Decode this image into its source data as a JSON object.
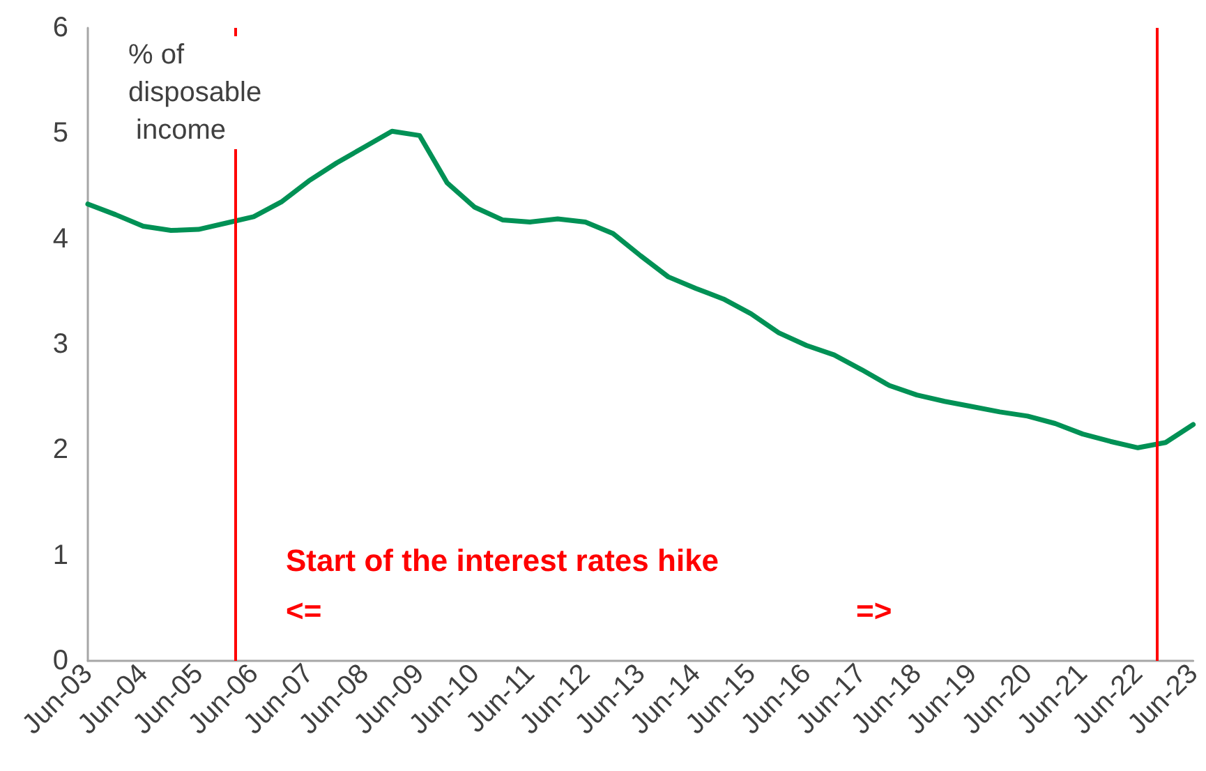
{
  "chart_data": {
    "type": "line",
    "x": [
      "2003-06",
      "2003-12",
      "2004-06",
      "2004-12",
      "2005-06",
      "2005-12",
      "2006-06",
      "2006-12",
      "2007-06",
      "2007-12",
      "2008-06",
      "2008-12",
      "2009-06",
      "2009-12",
      "2010-06",
      "2010-12",
      "2011-06",
      "2011-12",
      "2012-06",
      "2012-12",
      "2013-06",
      "2013-12",
      "2014-06",
      "2014-12",
      "2015-06",
      "2015-12",
      "2016-06",
      "2016-12",
      "2017-06",
      "2017-12",
      "2018-06",
      "2018-12",
      "2019-06",
      "2019-12",
      "2020-06",
      "2020-12",
      "2021-06",
      "2021-12",
      "2022-06",
      "2022-12",
      "2023-06"
    ],
    "series": [
      {
        "color": "#009155",
        "values": [
          4.33,
          4.23,
          4.12,
          4.08,
          4.09,
          4.15,
          4.21,
          4.35,
          4.55,
          4.72,
          4.87,
          5.02,
          4.98,
          4.53,
          4.3,
          4.18,
          4.16,
          4.19,
          4.16,
          4.05,
          3.84,
          3.64,
          3.53,
          3.43,
          3.29,
          3.11,
          2.99,
          2.9,
          2.76,
          2.61,
          2.52,
          2.46,
          2.41,
          2.36,
          2.32,
          2.25,
          2.15,
          2.08,
          2.02,
          2.07,
          2.24
        ]
      }
    ],
    "xlim": [
      "2003-06",
      "2023-06"
    ],
    "xticks": [
      {
        "value": "2003-06",
        "label": "Jun-03"
      },
      {
        "value": "2004-06",
        "label": "Jun-04"
      },
      {
        "value": "2005-06",
        "label": "Jun-05"
      },
      {
        "value": "2006-06",
        "label": "Jun-06"
      },
      {
        "value": "2007-06",
        "label": "Jun-07"
      },
      {
        "value": "2008-06",
        "label": "Jun-08"
      },
      {
        "value": "2009-06",
        "label": "Jun-09"
      },
      {
        "value": "2010-06",
        "label": "Jun-10"
      },
      {
        "value": "2011-06",
        "label": "Jun-11"
      },
      {
        "value": "2012-06",
        "label": "Jun-12"
      },
      {
        "value": "2013-06",
        "label": "Jun-13"
      },
      {
        "value": "2014-06",
        "label": "Jun-14"
      },
      {
        "value": "2015-06",
        "label": "Jun-15"
      },
      {
        "value": "2016-06",
        "label": "Jun-16"
      },
      {
        "value": "2017-06",
        "label": "Jun-17"
      },
      {
        "value": "2018-06",
        "label": "Jun-18"
      },
      {
        "value": "2019-06",
        "label": "Jun-19"
      },
      {
        "value": "2020-06",
        "label": "Jun-20"
      },
      {
        "value": "2021-06",
        "label": "Jun-21"
      },
      {
        "value": "2022-06",
        "label": "Jun-22"
      },
      {
        "value": "2023-06",
        "label": "Jun-23"
      }
    ],
    "ylim": [
      0,
      6
    ],
    "yticks": [
      0,
      1,
      2,
      3,
      4,
      5,
      6
    ],
    "ref_lines": [
      {
        "axis": "x",
        "value": "2006-02",
        "color": "#ff0000"
      },
      {
        "axis": "x",
        "value": "2022-10",
        "color": "#ff0000"
      }
    ],
    "annotations": [
      "% of disposable income",
      "Start of the interest rates hike",
      "<=",
      "=>"
    ],
    "grid": false,
    "marker": "none",
    "line_style": "solid"
  }
}
